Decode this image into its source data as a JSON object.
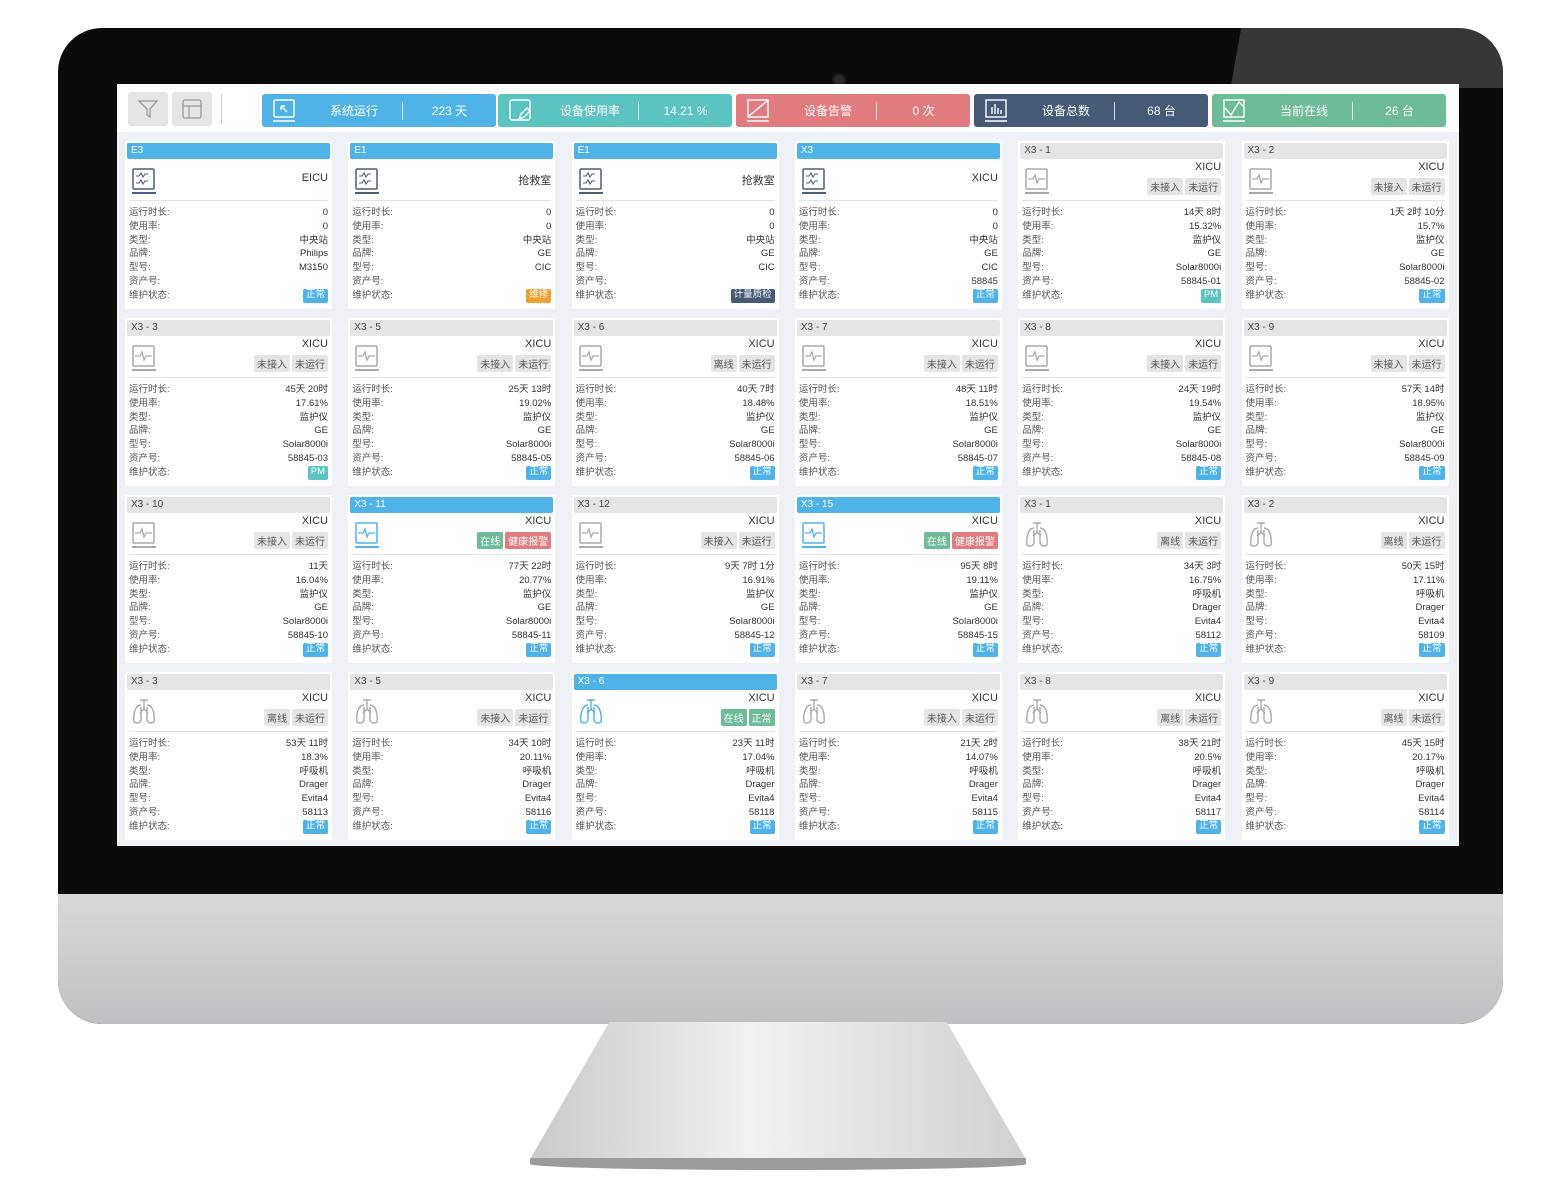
{
  "toolbar": {
    "filter_icon": "filter-icon",
    "layout_icon": "layout-icon"
  },
  "stats": [
    {
      "label": "系统运行",
      "value": "223 天",
      "color": "#4fb3e8",
      "icon": "cursor-screen-icon"
    },
    {
      "label": "设备使用率",
      "value": "14.21 %",
      "color": "#5bc4c1",
      "icon": "edit-screen-icon"
    },
    {
      "label": "设备告警",
      "value": "0 次",
      "color": "#e07b80",
      "icon": "alarm-screen-icon"
    },
    {
      "label": "设备总数",
      "value": "68 台",
      "color": "#465a78",
      "icon": "bar-chart-icon"
    },
    {
      "label": "当前在线",
      "value": "26 台",
      "color": "#6dbb97",
      "icon": "line-chart-icon"
    }
  ],
  "field_labels": [
    "运行时长:",
    "使用率:",
    "类型:",
    "品牌:",
    "型号:",
    "资产号:",
    "维护状态:"
  ],
  "status_colors": {
    "正常": "#4fb3e8",
    "维修": "#f0a030",
    "计量质检": "#465a78",
    "PM": "#5bc4c1"
  },
  "tag_colors": {
    "在线": "#6dbb97",
    "健康报警": "#e07b80",
    "正常": "#6dbb97",
    "未接入": "#e5e5e5",
    "未运行": "#e5e5e5",
    "离线": "#e5e5e5"
  },
  "cards": [
    {
      "title": "E3",
      "active": true,
      "icon": "station",
      "location": "EICU",
      "tags": [],
      "values": [
        "0",
        "0",
        "中央站",
        "Philips",
        "M3150",
        ""
      ],
      "status": "正常"
    },
    {
      "title": "E1",
      "active": true,
      "icon": "station",
      "location": "抢救室",
      "tags": [],
      "values": [
        "0",
        "0",
        "中央站",
        "GE",
        "CIC",
        ""
      ],
      "status": "维修"
    },
    {
      "title": "E1",
      "active": true,
      "icon": "station",
      "location": "抢救室",
      "tags": [],
      "values": [
        "0",
        "0",
        "中央站",
        "GE",
        "CIC",
        ""
      ],
      "status": "计量质检"
    },
    {
      "title": "X3",
      "active": true,
      "icon": "station",
      "location": "XICU",
      "tags": [],
      "values": [
        "0",
        "0",
        "中央站",
        "GE",
        "CIC",
        "58845"
      ],
      "status": "正常"
    },
    {
      "title": "X3 - 1",
      "active": false,
      "icon": "monitor",
      "location": "XICU",
      "tags": [
        "未接入",
        "未运行"
      ],
      "values": [
        "14天 8时",
        "15.32%",
        "监护仪",
        "GE",
        "Solar8000i",
        "58845-01"
      ],
      "status": "PM"
    },
    {
      "title": "X3 - 2",
      "active": false,
      "icon": "monitor",
      "location": "XICU",
      "tags": [
        "未接入",
        "未运行"
      ],
      "values": [
        "1天 2时 10分",
        "15.7%",
        "监护仪",
        "GE",
        "Solar8000i",
        "58845-02"
      ],
      "status": "正常"
    },
    {
      "title": "X3 - 3",
      "active": false,
      "icon": "monitor",
      "location": "XICU",
      "tags": [
        "未接入",
        "未运行"
      ],
      "values": [
        "45天 20时",
        "17.61%",
        "监护仪",
        "GE",
        "Solar8000i",
        "58845-03"
      ],
      "status": "PM"
    },
    {
      "title": "X3 - 5",
      "active": false,
      "icon": "monitor",
      "location": "XICU",
      "tags": [
        "未接入",
        "未运行"
      ],
      "values": [
        "25天 13时",
        "19.02%",
        "监护仪",
        "GE",
        "Solar8000i",
        "58845-05"
      ],
      "status": "正常"
    },
    {
      "title": "X3 - 6",
      "active": false,
      "icon": "monitor",
      "location": "XICU",
      "tags": [
        "离线",
        "未运行"
      ],
      "values": [
        "40天 7时",
        "18.48%",
        "监护仪",
        "GE",
        "Solar8000i",
        "58845-06"
      ],
      "status": "正常"
    },
    {
      "title": "X3 - 7",
      "active": false,
      "icon": "monitor",
      "location": "XICU",
      "tags": [
        "未接入",
        "未运行"
      ],
      "values": [
        "48天 11时",
        "18.51%",
        "监护仪",
        "GE",
        "Solar8000i",
        "58845-07"
      ],
      "status": "正常"
    },
    {
      "title": "X3 - 8",
      "active": false,
      "icon": "monitor",
      "location": "XICU",
      "tags": [
        "未接入",
        "未运行"
      ],
      "values": [
        "24天 19时",
        "19.54%",
        "监护仪",
        "GE",
        "Solar8000i",
        "58845-08"
      ],
      "status": "正常"
    },
    {
      "title": "X3 - 9",
      "active": false,
      "icon": "monitor",
      "location": "XICU",
      "tags": [
        "未接入",
        "未运行"
      ],
      "values": [
        "57天 14时",
        "18.95%",
        "监护仪",
        "GE",
        "Solar8000i",
        "58845-09"
      ],
      "status": "正常"
    },
    {
      "title": "X3 - 10",
      "active": false,
      "icon": "monitor",
      "location": "XICU",
      "tags": [
        "未接入",
        "未运行"
      ],
      "values": [
        "11天",
        "16.04%",
        "监护仪",
        "GE",
        "Solar8000i",
        "58845-10"
      ],
      "status": "正常"
    },
    {
      "title": "X3 - 11",
      "active": true,
      "icon": "monitor",
      "location": "XICU",
      "tags": [
        "在线",
        "健康报警"
      ],
      "values": [
        "77天 22时",
        "20.77%",
        "监护仪",
        "GE",
        "Solar8000i",
        "58845-11"
      ],
      "status": "正常"
    },
    {
      "title": "X3 - 12",
      "active": false,
      "icon": "monitor",
      "location": "XICU",
      "tags": [
        "未接入",
        "未运行"
      ],
      "values": [
        "9天 7时 1分",
        "16.91%",
        "监护仪",
        "GE",
        "Solar8000i",
        "58845-12"
      ],
      "status": "正常"
    },
    {
      "title": "X3 - 15",
      "active": true,
      "icon": "monitor",
      "location": "XICU",
      "tags": [
        "在线",
        "健康报警"
      ],
      "values": [
        "95天 8时",
        "19.11%",
        "监护仪",
        "GE",
        "Solar8000i",
        "58845-15"
      ],
      "status": "正常"
    },
    {
      "title": "X3 - 1",
      "active": false,
      "icon": "ventilator",
      "location": "XICU",
      "tags": [
        "离线",
        "未运行"
      ],
      "values": [
        "34天 3时",
        "16.75%",
        "呼吸机",
        "Drager",
        "Evita4",
        "58112"
      ],
      "status": "正常"
    },
    {
      "title": "X3 - 2",
      "active": false,
      "icon": "ventilator",
      "location": "XICU",
      "tags": [
        "离线",
        "未运行"
      ],
      "values": [
        "50天 15时",
        "17.11%",
        "呼吸机",
        "Drager",
        "Evita4",
        "58109"
      ],
      "status": "正常"
    },
    {
      "title": "X3 - 3",
      "active": false,
      "icon": "ventilator",
      "location": "XICU",
      "tags": [
        "离线",
        "未运行"
      ],
      "values": [
        "53天 11时",
        "18.3%",
        "呼吸机",
        "Drager",
        "Evita4",
        "58113"
      ],
      "status": "正常"
    },
    {
      "title": "X3 - 5",
      "active": false,
      "icon": "ventilator",
      "location": "XICU",
      "tags": [
        "未接入",
        "未运行"
      ],
      "values": [
        "34天 10时",
        "20.11%",
        "呼吸机",
        "Drager",
        "Evita4",
        "58116"
      ],
      "status": "正常"
    },
    {
      "title": "X3 - 6",
      "active": true,
      "icon": "ventilator",
      "location": "XICU",
      "tags": [
        "在线",
        "正常"
      ],
      "values": [
        "23天 11时",
        "17.04%",
        "呼吸机",
        "Drager",
        "Evita4",
        "58118"
      ],
      "status": "正常"
    },
    {
      "title": "X3 - 7",
      "active": false,
      "icon": "ventilator",
      "location": "XICU",
      "tags": [
        "未接入",
        "未运行"
      ],
      "values": [
        "21天 2时",
        "14.07%",
        "呼吸机",
        "Drager",
        "Evita4",
        "58115"
      ],
      "status": "正常"
    },
    {
      "title": "X3 - 8",
      "active": false,
      "icon": "ventilator",
      "location": "XICU",
      "tags": [
        "离线",
        "未运行"
      ],
      "values": [
        "38天 21时",
        "20.5%",
        "呼吸机",
        "Drager",
        "Evita4",
        "58117"
      ],
      "status": "正常"
    },
    {
      "title": "X3 - 9",
      "active": false,
      "icon": "ventilator",
      "location": "XICU",
      "tags": [
        "离线",
        "未运行"
      ],
      "values": [
        "45天 15时",
        "20.17%",
        "呼吸机",
        "Drager",
        "Evita4",
        "58114"
      ],
      "status": "正常"
    }
  ]
}
